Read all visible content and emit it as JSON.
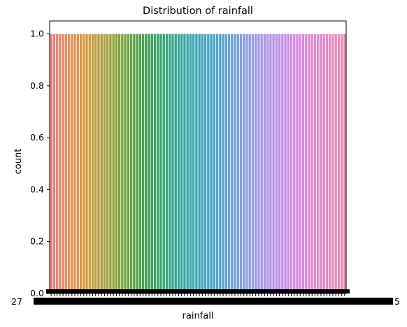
{
  "chart_data": {
    "type": "bar",
    "title": "Distribution of rainfall",
    "xlabel": "rainfall",
    "ylabel": "count",
    "ylim": [
      0,
      1.05
    ],
    "yticks": [
      "0.0",
      "0.2",
      "0.4",
      "0.6",
      "0.8",
      "1.0"
    ],
    "ytick_values": [
      0,
      0.2,
      0.4,
      0.6,
      0.8,
      1.0
    ],
    "first_xtick_label": "27",
    "last_xtick_label": "5",
    "bar_count": 100,
    "bar_value": 1,
    "palette": [
      "#e8837d",
      "#d99a44",
      "#8aa33a",
      "#3fa35a",
      "#37a7a0",
      "#4aa6c8",
      "#8fa0e3",
      "#c08ee8",
      "#e48ad4",
      "#e88fb0"
    ],
    "grid": false,
    "legend": "none"
  }
}
